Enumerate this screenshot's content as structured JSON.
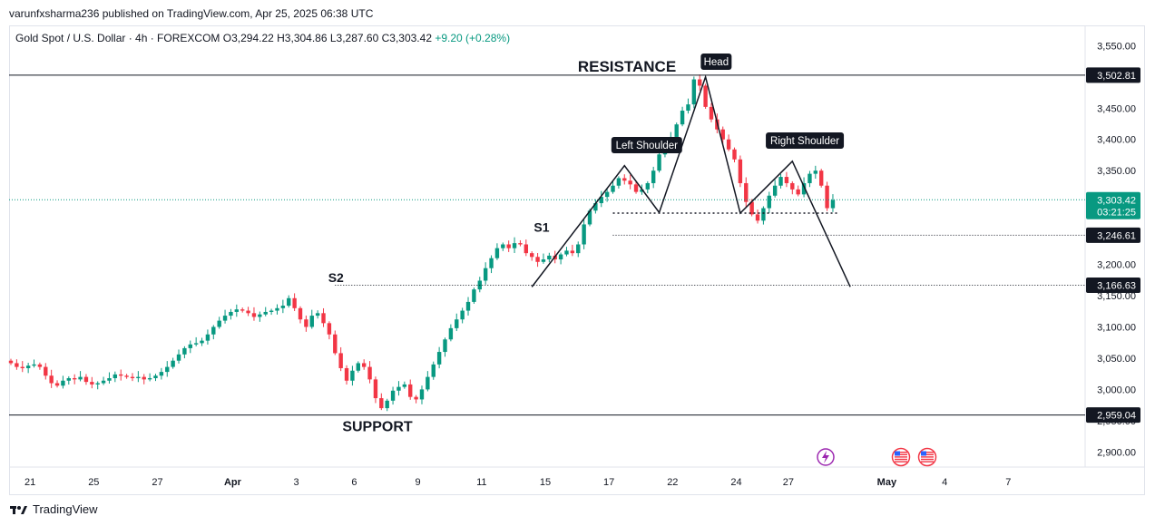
{
  "header": {
    "publish_line": "varunfxsharma236 published on TradingView.com, Apr 25, 2025 06:38 UTC"
  },
  "symbol": {
    "name": "Gold Spot / U.S. Dollar · 4h · FOREXCOM",
    "open": "O3,294.22",
    "high": "H3,304.86",
    "low": "L3,287.60",
    "close": "C3,303.42",
    "change": "+9.20 (+0.28%)"
  },
  "chart_data": {
    "type": "candlestick",
    "ylim": [
      2870,
      3565
    ],
    "y_ticks": [
      3550,
      3500,
      3450,
      3400,
      3350,
      3300,
      3250,
      3200,
      3150,
      3100,
      3050,
      3000,
      2950,
      2900
    ],
    "y_tick_labels": [
      "3,550.00",
      "3,500.00",
      "3,450.00",
      "3,400.00",
      "3,350.00",
      "3,300.00",
      "3,250.00",
      "3,200.00",
      "3,150.00",
      "3,100.00",
      "3,050.00",
      "3,000.00",
      "2,950.00",
      "2,900.00"
    ],
    "x_ticks": [
      {
        "label": "21",
        "bar": 3
      },
      {
        "label": "25",
        "bar": 14
      },
      {
        "label": "27",
        "bar": 25
      },
      {
        "label": "Apr",
        "bar": 38
      },
      {
        "label": "3",
        "bar": 49
      },
      {
        "label": "6",
        "bar": 59
      },
      {
        "label": "9",
        "bar": 70
      },
      {
        "label": "11",
        "bar": 81
      },
      {
        "label": "15",
        "bar": 92
      },
      {
        "label": "17",
        "bar": 103
      },
      {
        "label": "22",
        "bar": 114
      },
      {
        "label": "24",
        "bar": 125
      },
      {
        "label": "27",
        "bar": 134
      },
      {
        "label": "May",
        "bar": 151
      },
      {
        "label": "4",
        "bar": 161
      },
      {
        "label": "7",
        "bar": 172
      }
    ],
    "closes": [
      3042,
      3036,
      3034,
      3038,
      3040,
      3036,
      3022,
      3010,
      3006,
      3014,
      3018,
      3016,
      3020,
      3012,
      3008,
      3010,
      3014,
      3018,
      3024,
      3022,
      3020,
      3018,
      3020,
      3016,
      3018,
      3022,
      3028,
      3036,
      3046,
      3056,
      3066,
      3072,
      3074,
      3078,
      3088,
      3100,
      3110,
      3118,
      3124,
      3128,
      3126,
      3122,
      3116,
      3120,
      3124,
      3126,
      3130,
      3134,
      3146,
      3130,
      3112,
      3100,
      3118,
      3122,
      3106,
      3088,
      3058,
      3034,
      3014,
      3030,
      3042,
      3036,
      3016,
      2986,
      2970,
      2982,
      2998,
      3004,
      3008,
      2988,
      2984,
      3000,
      3020,
      3040,
      3060,
      3080,
      3098,
      3112,
      3126,
      3140,
      3160,
      3174,
      3194,
      3210,
      3226,
      3232,
      3226,
      3234,
      3232,
      3218,
      3212,
      3204,
      3208,
      3214,
      3208,
      3216,
      3222,
      3218,
      3232,
      3264,
      3286,
      3298,
      3308,
      3316,
      3326,
      3338,
      3334,
      3328,
      3316,
      3320,
      3330,
      3350,
      3376,
      3392,
      3404,
      3424,
      3446,
      3456,
      3496,
      3486,
      3452,
      3432,
      3416,
      3400,
      3384,
      3368,
      3330,
      3300,
      3280,
      3270,
      3290,
      3310,
      3326,
      3340,
      3330,
      3320,
      3312,
      3330,
      3345,
      3350,
      3326,
      3290,
      3303
    ]
  },
  "levels": {
    "resistance": {
      "value": 3502.81,
      "label": "3,502.81"
    },
    "current": {
      "value": 3303.42,
      "label": "3,303.42",
      "countdown": "03:21:25"
    },
    "level_3246": {
      "value": 3246.61,
      "label": "3,246.61"
    },
    "level_3166": {
      "value": 3166.63,
      "label": "3,166.63"
    },
    "support": {
      "value": 2959.04,
      "label": "2,959.04"
    }
  },
  "annotations": {
    "resistance": "RESISTANCE",
    "support": "SUPPORT",
    "s1": "S1",
    "s2": "S2",
    "head": "Head",
    "left_shoulder": "Left Shoulder",
    "right_shoulder": "Right Shoulder"
  },
  "pattern_lines": [
    [
      [
        90,
        3164
      ],
      [
        106,
        3358
      ],
      [
        112,
        3283
      ],
      [
        120,
        3500
      ],
      [
        126,
        3282
      ],
      [
        135,
        3365
      ],
      [
        145,
        3164
      ]
    ]
  ],
  "colors": {
    "up": "#089981",
    "down": "#f23645",
    "text": "#131722",
    "grid": "#e0e3eb"
  },
  "footer": {
    "brand": "TradingView"
  }
}
